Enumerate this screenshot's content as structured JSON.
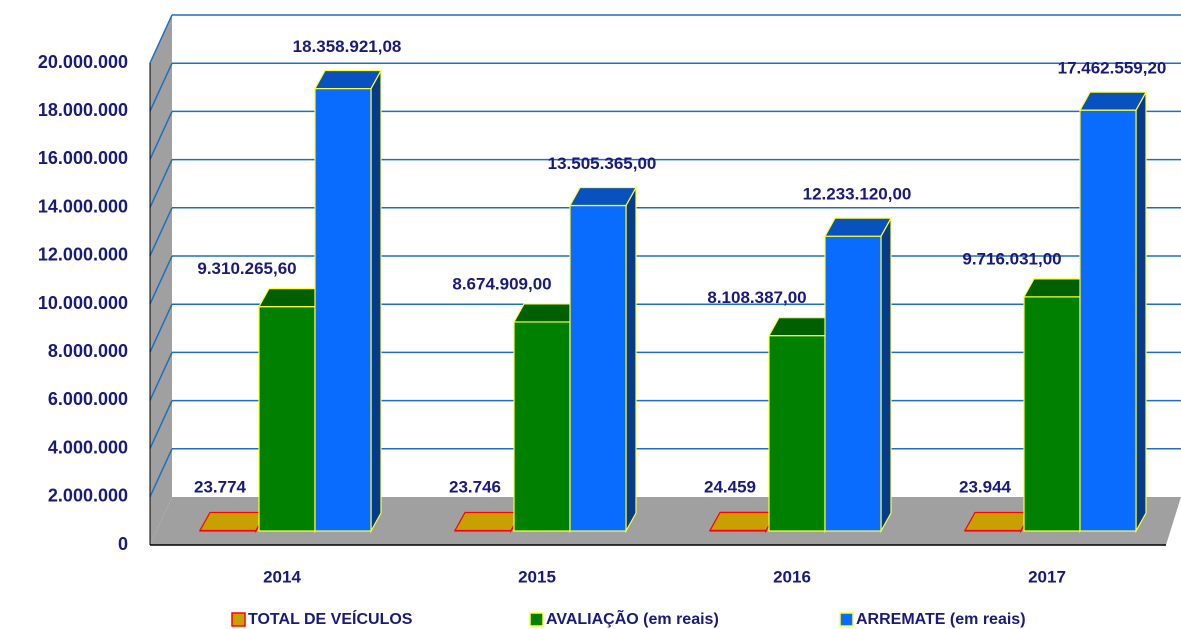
{
  "chart_data": {
    "type": "bar3d",
    "categories": [
      "2014",
      "2015",
      "2016",
      "2017"
    ],
    "series": [
      {
        "name": "TOTAL DE VEÍCULOS",
        "color": "#c8a000",
        "values": [
          23774,
          23746,
          24459,
          23944
        ],
        "value_labels": [
          "23.774",
          "23.746",
          "24.459",
          "23.944"
        ]
      },
      {
        "name": "AVALIAÇÃO (em reais)",
        "color": "#008000",
        "values": [
          9310265.6,
          8674909,
          8108387,
          9716031
        ],
        "value_labels": [
          "9.310.265,60",
          "8.674.909,00",
          "8.108.387,00",
          "9.716.031,00"
        ]
      },
      {
        "name": "ARREMATE (em reais)",
        "color": "#0a6cff",
        "values": [
          18358921.08,
          13505365,
          12233120,
          17462559.2
        ],
        "value_labels": [
          "18.358.921,08",
          "13.505.365,00",
          "12.233.120,00",
          "17.462.559,20"
        ]
      }
    ],
    "ylim": [
      0,
      20000000
    ],
    "yticks": [
      {
        "value": 0,
        "label": "0"
      },
      {
        "value": 2000000,
        "label": "2.000.000"
      },
      {
        "value": 4000000,
        "label": "4.000.000"
      },
      {
        "value": 6000000,
        "label": "6.000.000"
      },
      {
        "value": 8000000,
        "label": "8.000.000"
      },
      {
        "value": 10000000,
        "label": "10.000.000"
      },
      {
        "value": 12000000,
        "label": "12.000.000"
      },
      {
        "value": 14000000,
        "label": "14.000.000"
      },
      {
        "value": 16000000,
        "label": "16.000.000"
      },
      {
        "value": 18000000,
        "label": "18.000.000"
      },
      {
        "value": 20000000,
        "label": "20.000.000"
      }
    ],
    "grid": true
  }
}
